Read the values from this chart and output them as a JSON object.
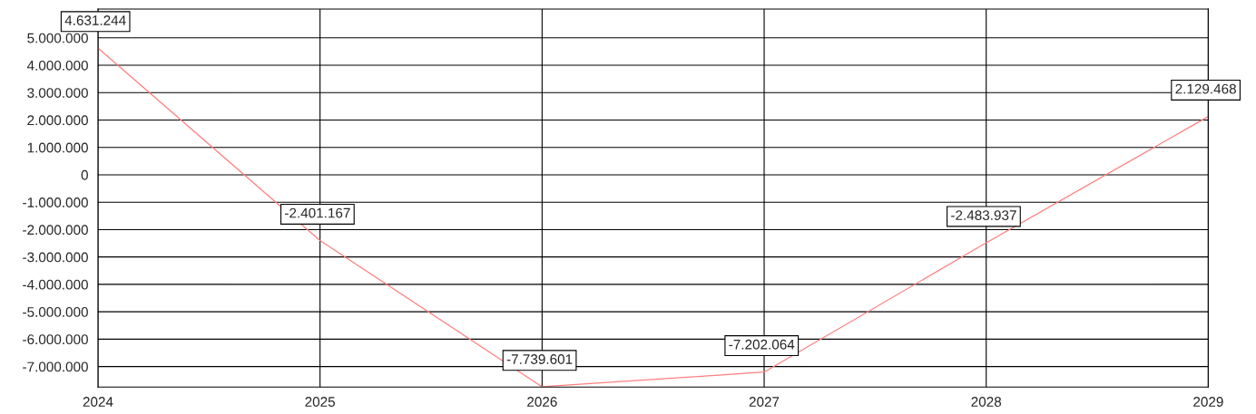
{
  "chart_data": {
    "type": "line",
    "x": [
      2024,
      2025,
      2026,
      2027,
      2028,
      2029
    ],
    "series": [
      {
        "color": "#ff7f7f",
        "values": [
          4631244,
          -2401167,
          -7739601,
          -7202064,
          -2483937,
          2129468
        ],
        "value_labels": [
          "4.631.244",
          "-2.401.167",
          "-7.739.601",
          "-7.202.064",
          "-2.483.937",
          "2.129.468"
        ]
      }
    ],
    "xlim": [
      2024,
      2029
    ],
    "xticks": [
      2024,
      2025,
      2026,
      2027,
      2028,
      2029
    ],
    "ylim": [
      -7750000,
      6050000
    ],
    "yticks": [
      {
        "value": 5000000,
        "label": "5.000.000"
      },
      {
        "value": 4000000,
        "label": "4.000.000"
      },
      {
        "value": 3000000,
        "label": "3.000.000"
      },
      {
        "value": 2000000,
        "label": "2.000.000"
      },
      {
        "value": 1000000,
        "label": "1.000.000"
      },
      {
        "value": 0,
        "label": "0"
      },
      {
        "value": -1000000,
        "label": "-1.000.000"
      },
      {
        "value": -2000000,
        "label": "-2.000.000"
      },
      {
        "value": -3000000,
        "label": "-3.000.000"
      },
      {
        "value": -4000000,
        "label": "-4.000.000"
      },
      {
        "value": -5000000,
        "label": "-5.000.000"
      },
      {
        "value": -6000000,
        "label": "-6.000.000"
      },
      {
        "value": -7000000,
        "label": "-7.000.000"
      }
    ],
    "grid": true,
    "marker": "none",
    "line_style": "solid"
  }
}
